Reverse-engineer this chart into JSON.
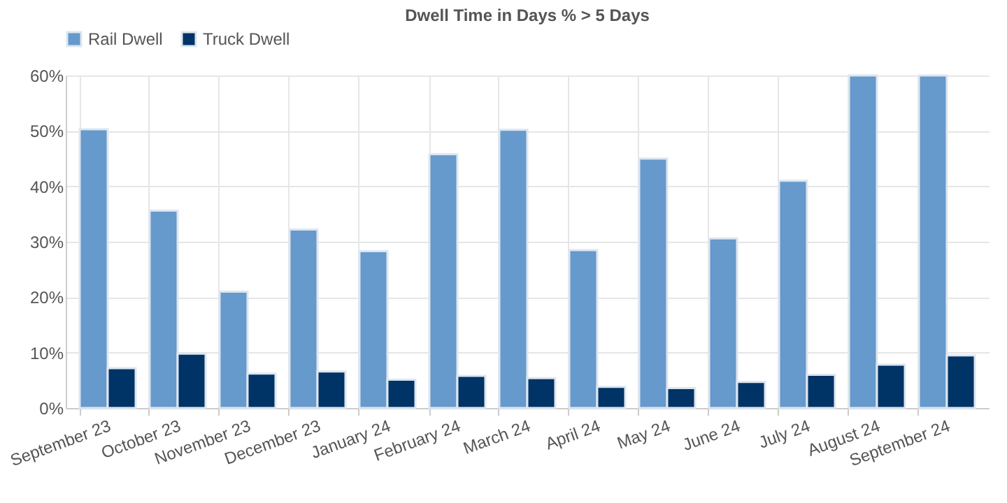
{
  "chart_data": {
    "type": "bar",
    "title": "Dwell Time in Days % > 5 Days",
    "categories": [
      "September 23",
      "October 23",
      "November 23",
      "December 23",
      "January 24",
      "February 24",
      "March 24",
      "April 24",
      "May 24",
      "June 24",
      "July 24",
      "August 24",
      "September 24"
    ],
    "series": [
      {
        "name": "Rail Dwell",
        "color": "#6699cc",
        "values": [
          50.3,
          35.6,
          21,
          32.2,
          28.3,
          45.8,
          50.2,
          28.5,
          45,
          30.6,
          41,
          60,
          60
        ]
      },
      {
        "name": "Truck Dwell",
        "color": "#003366",
        "values": [
          7.2,
          9.8,
          6.2,
          6.6,
          5.1,
          5.8,
          5.4,
          3.8,
          3.6,
          4.7,
          6,
          7.8,
          9.5
        ]
      }
    ],
    "ylim": [
      0,
      60
    ],
    "yticks": [
      {
        "value": 0,
        "label": "0%"
      },
      {
        "value": 10,
        "label": "10%"
      },
      {
        "value": 20,
        "label": "20%"
      },
      {
        "value": 30,
        "label": "30%"
      },
      {
        "value": 40,
        "label": "40%"
      },
      {
        "value": 50,
        "label": "50%"
      },
      {
        "value": 60,
        "label": "60%"
      }
    ],
    "grid": true,
    "legend": "top"
  }
}
